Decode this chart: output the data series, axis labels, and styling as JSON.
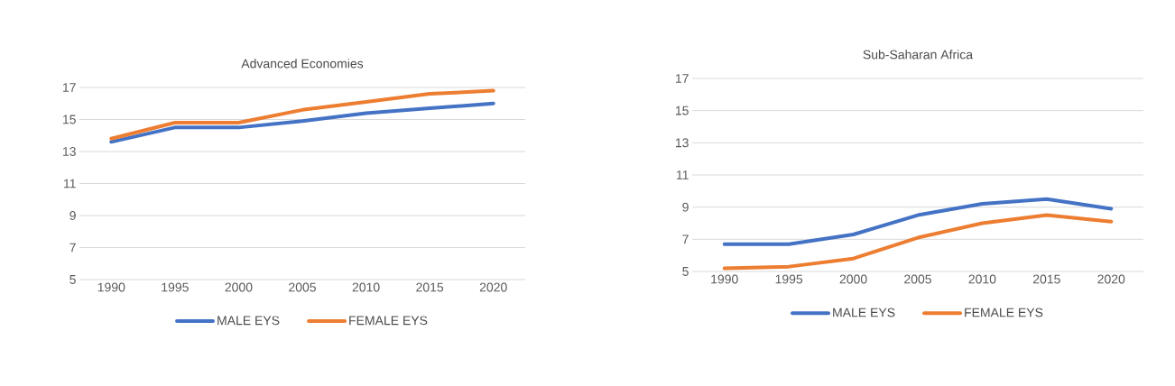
{
  "chart_data": [
    {
      "type": "line",
      "title": "Advanced Economies",
      "categories": [
        "1990",
        "1995",
        "2000",
        "2005",
        "2010",
        "2015",
        "2020"
      ],
      "ylim": [
        5,
        17
      ],
      "yticks": [
        5,
        7,
        9,
        11,
        13,
        15,
        17
      ],
      "grid": "y",
      "legend": "bottom",
      "series": [
        {
          "name": "MALE EYS",
          "color": "#4472c4",
          "values": [
            13.6,
            14.5,
            14.5,
            14.9,
            15.4,
            15.7,
            16.0
          ]
        },
        {
          "name": "FEMALE EYS",
          "color": "#ed7d31",
          "values": [
            13.8,
            14.8,
            14.8,
            15.6,
            16.1,
            16.6,
            16.8
          ]
        }
      ]
    },
    {
      "type": "line",
      "title": "Sub-Saharan Africa",
      "categories": [
        "1990",
        "1995",
        "2000",
        "2005",
        "2010",
        "2015",
        "2020"
      ],
      "ylim": [
        5,
        17
      ],
      "yticks": [
        5,
        7,
        9,
        11,
        13,
        15,
        17
      ],
      "grid": "y",
      "legend": "bottom",
      "series": [
        {
          "name": "MALE EYS",
          "color": "#4472c4",
          "values": [
            6.7,
            6.7,
            7.3,
            8.5,
            9.2,
            9.5,
            8.9
          ]
        },
        {
          "name": "FEMALE EYS",
          "color": "#ed7d31",
          "values": [
            5.2,
            5.3,
            5.8,
            7.1,
            8.0,
            8.5,
            8.1
          ]
        }
      ]
    }
  ]
}
